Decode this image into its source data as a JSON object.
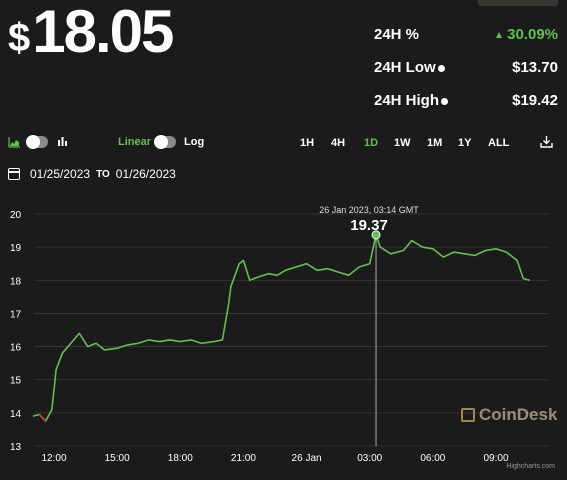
{
  "price": {
    "currency_symbol": "$",
    "value": "18.05"
  },
  "stats": {
    "pct": {
      "label": "24H %",
      "value": "30.09%",
      "direction": "up"
    },
    "low": {
      "label": "24H Low",
      "value": "$13.70"
    },
    "high": {
      "label": "24H High",
      "value": "$19.42"
    }
  },
  "toolbar": {
    "linear_label": "Linear",
    "log_label": "Log",
    "timeframes": [
      "1H",
      "4H",
      "1D",
      "1W",
      "1M",
      "1Y",
      "ALL"
    ],
    "active_timeframe": "1D"
  },
  "date_range": {
    "from": "01/25/2023",
    "to_label": "TO",
    "to": "01/26/2023"
  },
  "tooltip": {
    "time": "26 Jan 2023, 03:14 GMT",
    "value": "19.37"
  },
  "watermark": "CoinDesk",
  "credits": "Highcharts.com",
  "colors": {
    "line": "#5bc544",
    "active": "#5bc544",
    "down": "#e0312f",
    "background": "#1b1b1b",
    "grid": "#3a3a3a"
  },
  "chart_data": {
    "type": "line",
    "x_tick_labels": [
      "12:00",
      "15:00",
      "18:00",
      "21:00",
      "26 Jan",
      "03:00",
      "06:00",
      "09:00"
    ],
    "ylim": [
      13,
      20
    ],
    "y_ticks": [
      13,
      14,
      15,
      16,
      17,
      18,
      19,
      20
    ],
    "grid": true,
    "series": [
      {
        "x": [
          11.0,
          11.3,
          11.6,
          11.9,
          12.1,
          12.4,
          12.8,
          13.2,
          13.6,
          14.0,
          14.4,
          15.0,
          15.5,
          16.0,
          16.5,
          17.0,
          17.5,
          18.0,
          18.5,
          19.0,
          19.6,
          20.0,
          20.3,
          20.4,
          20.8,
          21.0,
          21.3,
          21.7,
          22.2,
          22.6,
          23.0,
          23.5,
          24.0,
          24.5,
          25.0,
          25.5,
          26.0,
          26.5,
          27.0,
          27.3,
          27.5,
          28.0,
          28.6,
          29.0,
          29.5,
          30.0,
          30.5,
          31.0,
          31.5,
          32.0,
          32.5,
          33.0,
          33.5,
          34.0,
          34.3,
          34.6
        ],
        "y": [
          13.9,
          13.95,
          13.75,
          14.1,
          15.3,
          15.8,
          16.1,
          16.4,
          16.0,
          16.1,
          15.9,
          15.95,
          16.05,
          16.1,
          16.2,
          16.15,
          16.2,
          16.15,
          16.2,
          16.1,
          16.15,
          16.2,
          17.3,
          17.8,
          18.5,
          18.6,
          18.0,
          18.1,
          18.2,
          18.15,
          18.3,
          18.4,
          18.5,
          18.3,
          18.35,
          18.25,
          18.15,
          18.4,
          18.5,
          19.37,
          19.0,
          18.8,
          18.9,
          19.2,
          19.0,
          18.95,
          18.7,
          18.85,
          18.8,
          18.75,
          18.9,
          18.95,
          18.85,
          18.6,
          18.05,
          18.0
        ]
      }
    ]
  }
}
